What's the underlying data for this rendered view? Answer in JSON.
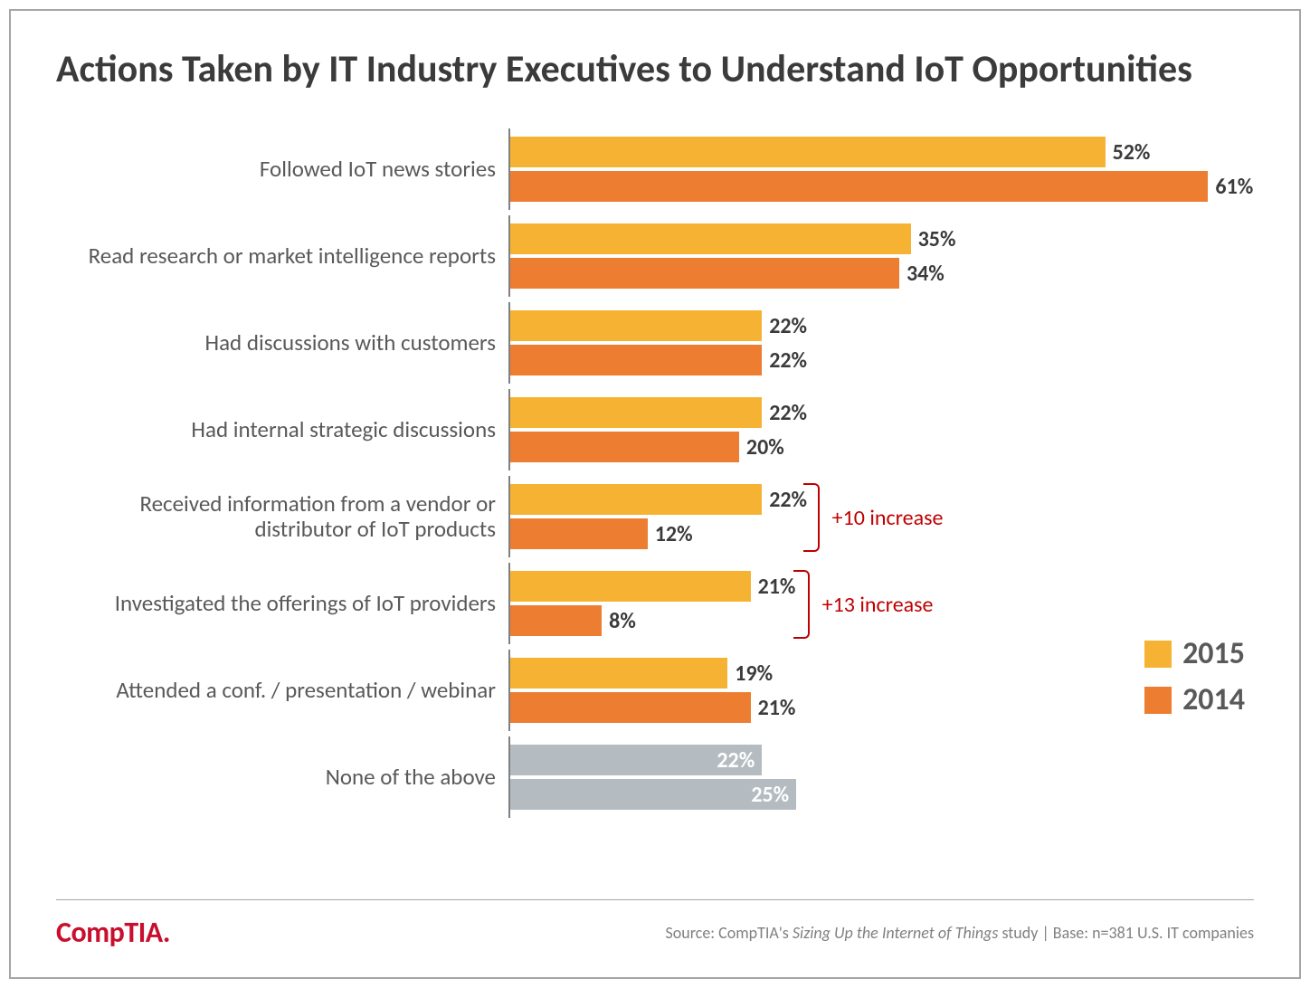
{
  "title": "Actions Taken by IT Industry Executives to Understand IoT Opportunities",
  "chart": {
    "type": "bar-grouped-horizontal",
    "xmax": 65,
    "series": [
      {
        "name": "2015",
        "color": "#f6b333",
        "label_color": "#3b3b3b"
      },
      {
        "name": "2014",
        "color": "#ed7d31",
        "label_color": "#3b3b3b"
      }
    ],
    "none_color": "#b4bcc2",
    "none_label_color": "#ffffff",
    "categories": [
      {
        "label": "Followed IoT news stories",
        "v2015": 52,
        "v2014": 61,
        "gray": false
      },
      {
        "label": "Read research or market intelligence reports",
        "v2015": 35,
        "v2014": 34,
        "gray": false
      },
      {
        "label": "Had discussions with customers",
        "v2015": 22,
        "v2014": 22,
        "gray": false
      },
      {
        "label": "Had internal strategic discussions",
        "v2015": 22,
        "v2014": 20,
        "gray": false
      },
      {
        "label": "Received information from a vendor or distributor of IoT products",
        "v2015": 22,
        "v2014": 12,
        "gray": false
      },
      {
        "label": "Investigated the offerings of IoT providers",
        "v2015": 21,
        "v2014": 8,
        "gray": false
      },
      {
        "label": "Attended a conf. / presentation / webinar",
        "v2015": 19,
        "v2014": 21,
        "gray": false
      },
      {
        "label": "None of the above",
        "v2015": 22,
        "v2014": 25,
        "gray": true
      }
    ],
    "annotations": [
      {
        "row_index": 4,
        "text": "+10 increase"
      },
      {
        "row_index": 5,
        "text": "+13 increase"
      }
    ]
  },
  "legend": {
    "items": [
      {
        "label": "2015",
        "color": "#f6b333"
      },
      {
        "label": "2014",
        "color": "#ed7d31"
      }
    ]
  },
  "footer": {
    "logo_text": "CompTIA.",
    "source_prefix": "Source: CompTIA's ",
    "source_ital": "Sizing Up the Internet of Things",
    "source_suffix": " study | Base: n=381 U.S. IT companies"
  }
}
